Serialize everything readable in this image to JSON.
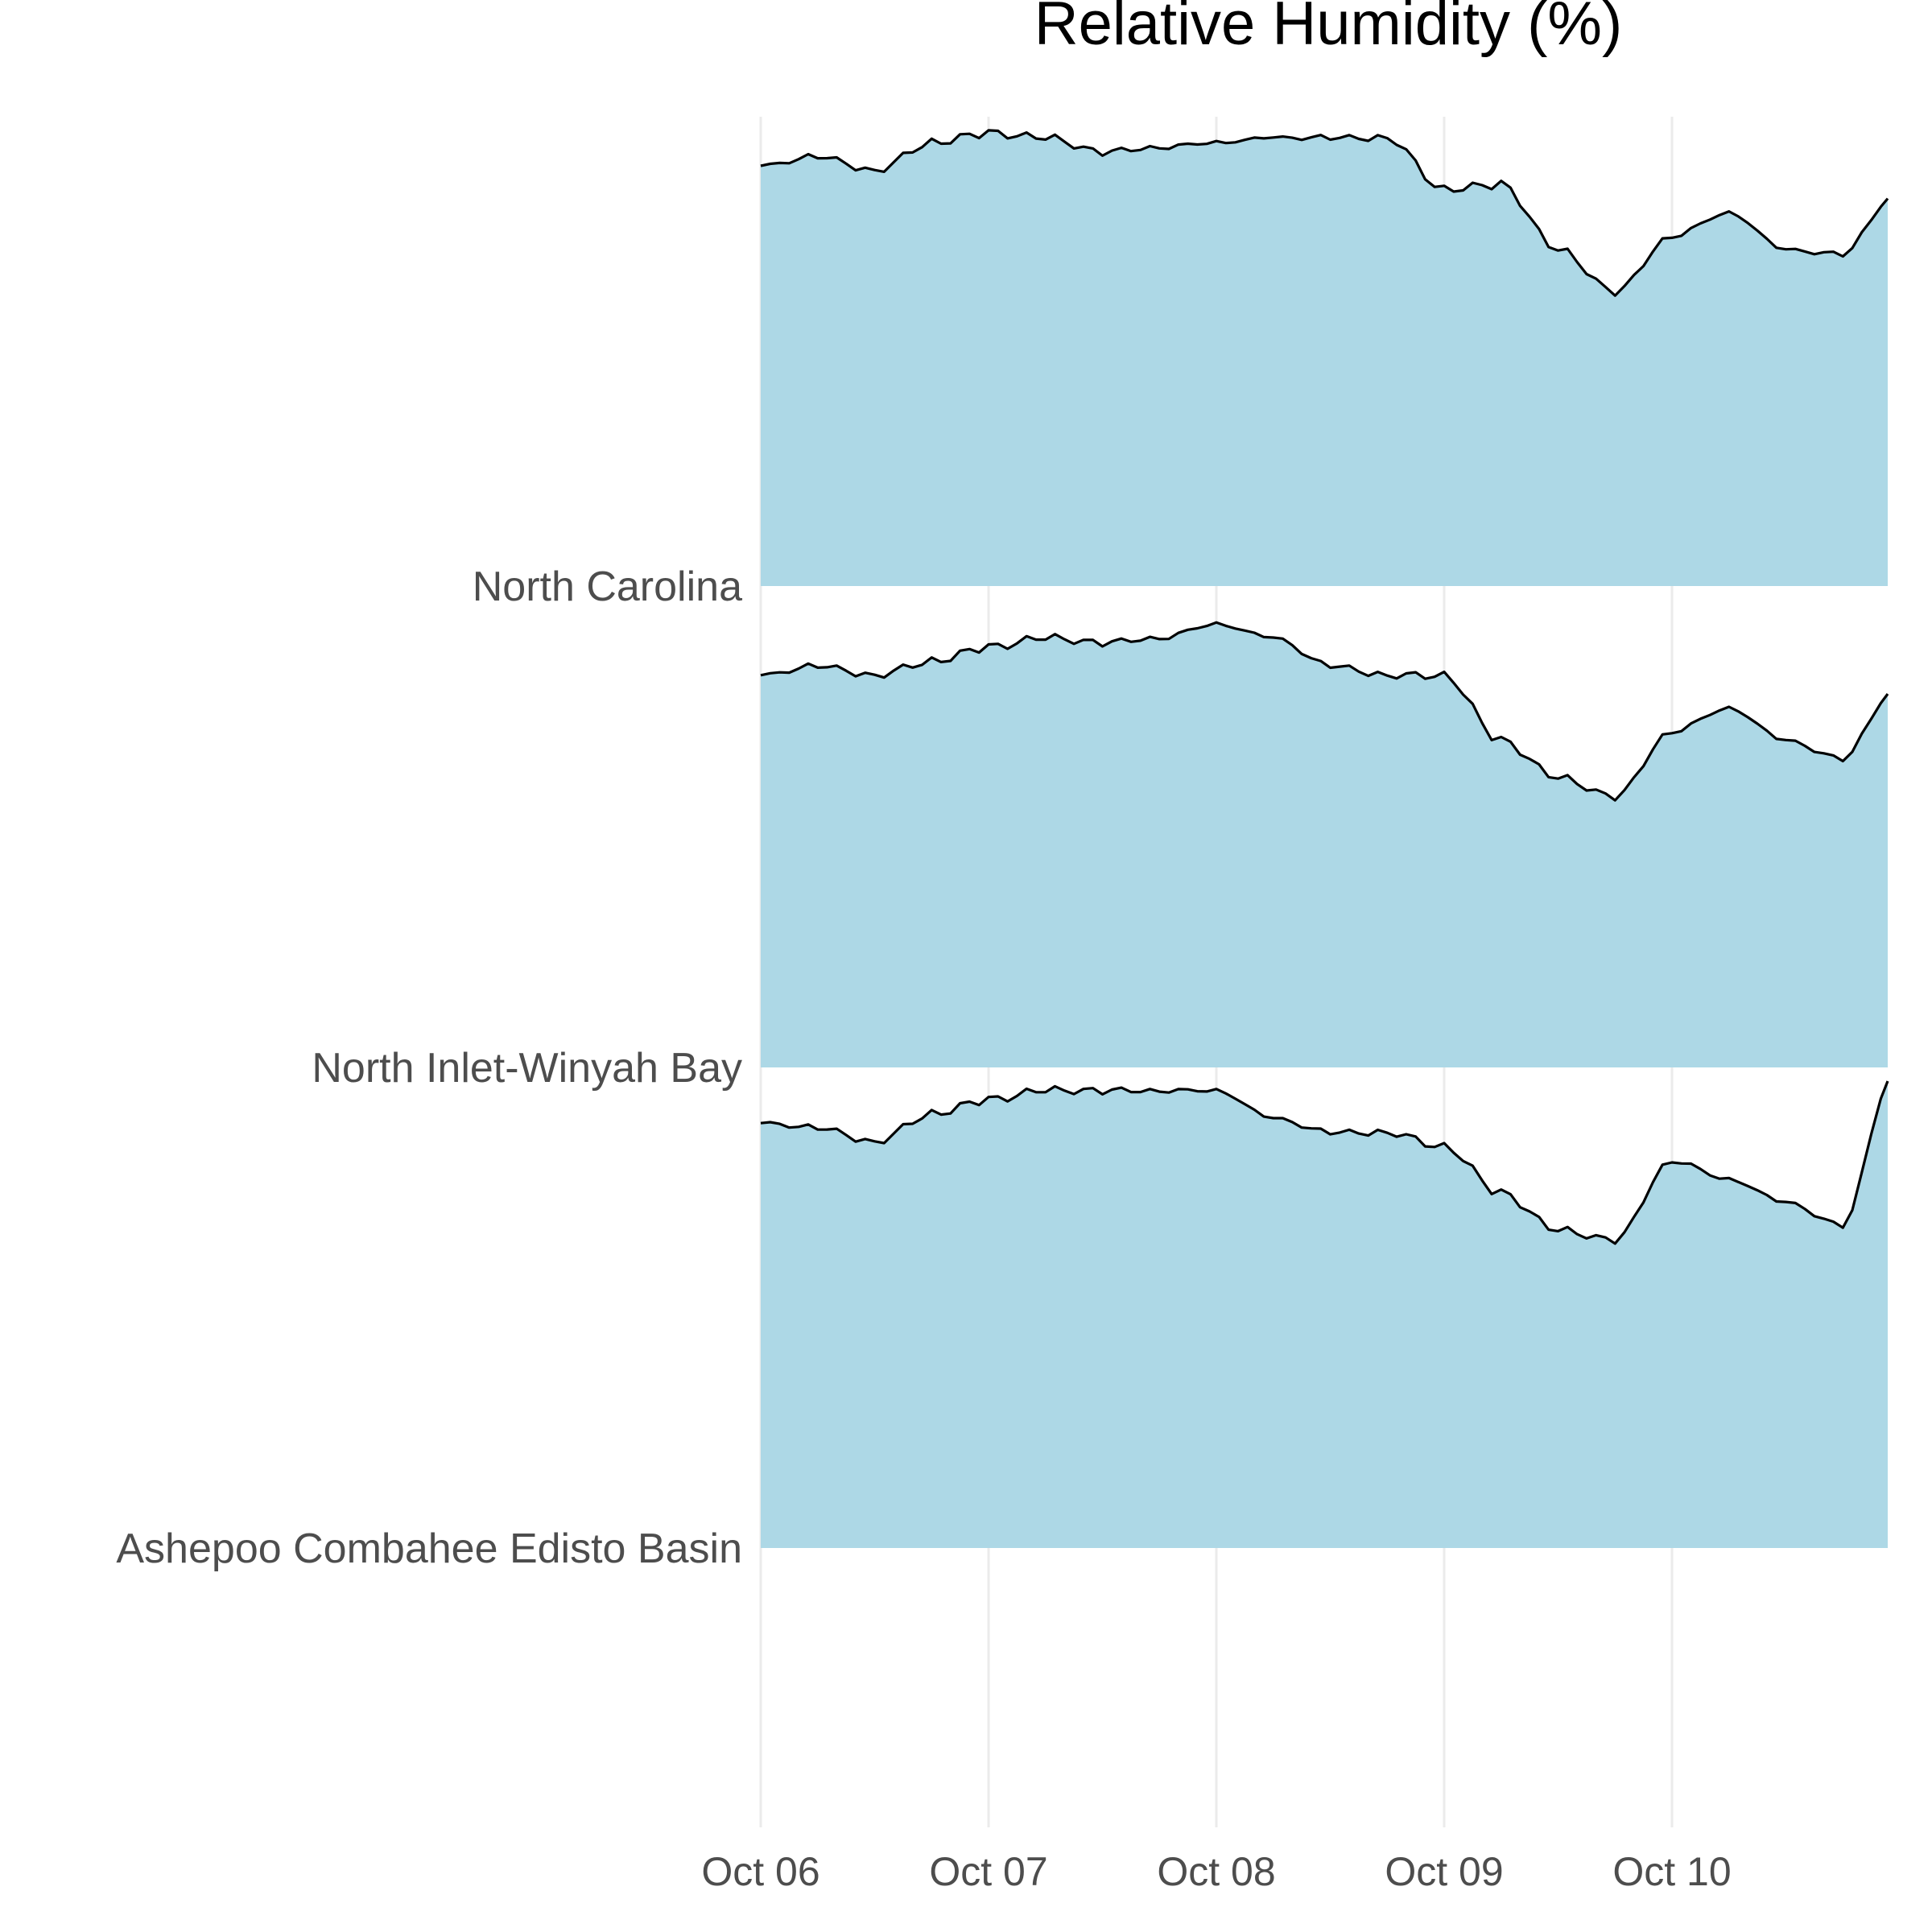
{
  "chart_data": {
    "type": "area",
    "title": "Relative Humidity (%)",
    "xlabel": "",
    "ylabel": "",
    "x_ticks": [
      "Oct 06",
      "Oct 07",
      "Oct 08",
      "Oct 09",
      "Oct 10"
    ],
    "x_range": [
      "Oct 06 00:00",
      "Oct 10 23:00"
    ],
    "grid": "vertical gridlines at day ticks",
    "legend": "none",
    "fill_color": "#add8e6",
    "line_color": "#000000",
    "x_hours": [
      0,
      6,
      12,
      18,
      24,
      30,
      36,
      42,
      48,
      54,
      60,
      66,
      72,
      78,
      84,
      90,
      96,
      102,
      108,
      114,
      119
    ],
    "series": [
      {
        "name": "North Carolina",
        "values": [
          90,
          92,
          89,
          95,
          97,
          96,
          93,
          94,
          95,
          96,
          96,
          96,
          85,
          86,
          72,
          63,
          75,
          80,
          72,
          71,
          83
        ]
      },
      {
        "name": "North Inlet-Winyah Bay",
        "values": [
          84,
          86,
          84,
          87,
          90,
          92,
          91,
          92,
          95,
          92,
          86,
          84,
          84,
          70,
          62,
          58,
          72,
          77,
          70,
          66,
          80
        ]
      },
      {
        "name": "Ashepoo Combahee Edisto Basin",
        "values": [
          91,
          90,
          87,
          93,
          96,
          98,
          98,
          98,
          98,
          92,
          89,
          89,
          86,
          76,
          68,
          66,
          83,
          79,
          74,
          69,
          100
        ]
      }
    ]
  }
}
